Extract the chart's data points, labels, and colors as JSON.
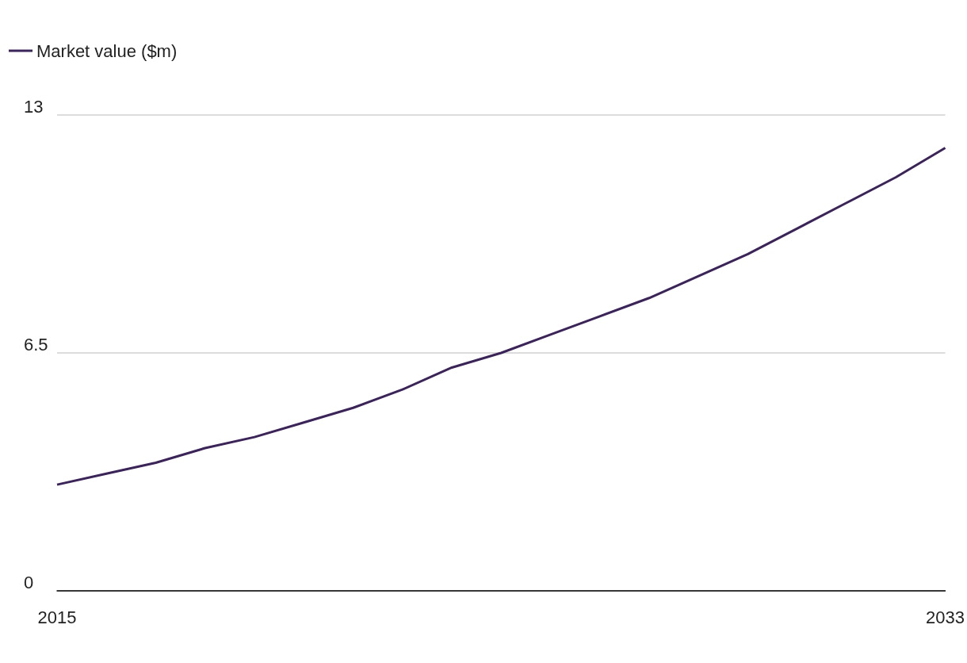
{
  "chart_data": {
    "type": "line",
    "x": [
      2015,
      2016,
      2017,
      2018,
      2019,
      2020,
      2021,
      2022,
      2023,
      2024,
      2025,
      2026,
      2027,
      2028,
      2029,
      2030,
      2031,
      2032,
      2033
    ],
    "series": [
      {
        "name": "Market value ($m)",
        "color": "#3b2458",
        "values": [
          2.9,
          3.2,
          3.5,
          3.9,
          4.2,
          4.6,
          5.0,
          5.5,
          6.1,
          6.5,
          7.0,
          7.5,
          8.0,
          8.6,
          9.2,
          9.9,
          10.6,
          11.3,
          12.1
        ]
      }
    ],
    "xlim": [
      2015,
      2033
    ],
    "xticks": [
      2015,
      2033
    ],
    "ylim": [
      0,
      13
    ],
    "yticks": [
      0,
      6.5,
      13
    ],
    "grid": "y",
    "legend": "top left",
    "marker": "none",
    "line_style": "solid"
  }
}
